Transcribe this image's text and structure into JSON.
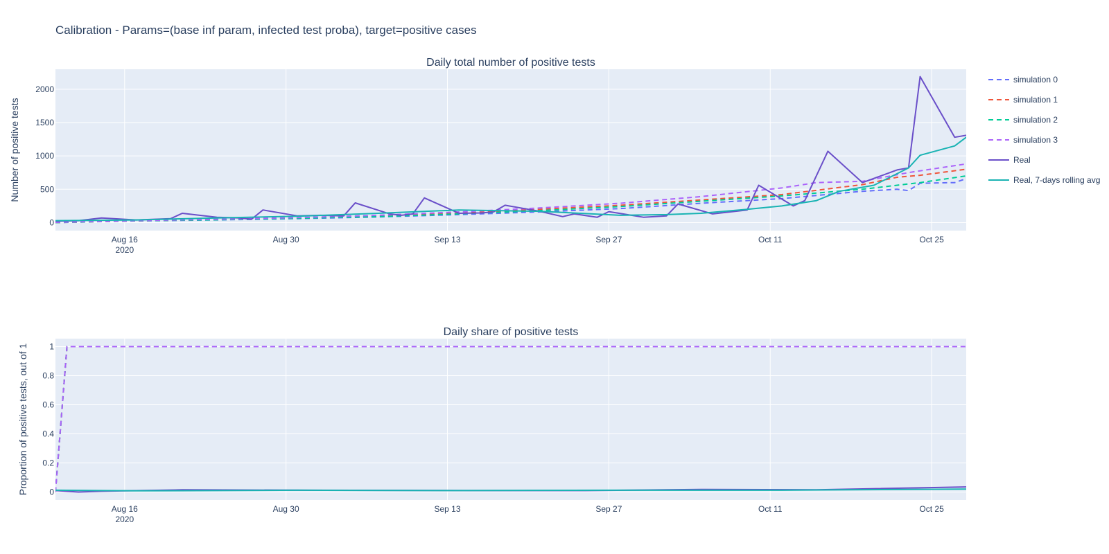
{
  "title": "Calibration - Params=(base inf param, infected test proba), target=positive cases",
  "chart_data": [
    {
      "type": "line",
      "title": "Daily total number of positive tests",
      "xlabel": "",
      "ylabel": "Number of positive tests",
      "x_range": [
        "2020-08-10",
        "2020-10-28"
      ],
      "x_ticks": [
        {
          "date": "2020-08-16",
          "label": "Aug 16",
          "sub": "2020"
        },
        {
          "date": "2020-08-30",
          "label": "Aug 30",
          "sub": ""
        },
        {
          "date": "2020-09-13",
          "label": "Sep 13",
          "sub": ""
        },
        {
          "date": "2020-09-27",
          "label": "Sep 27",
          "sub": ""
        },
        {
          "date": "2020-10-11",
          "label": "Oct 11",
          "sub": ""
        },
        {
          "date": "2020-10-25",
          "label": "Oct 25",
          "sub": ""
        }
      ],
      "ylim": [
        -120,
        2300
      ],
      "y_ticks": [
        {
          "value": 0,
          "label": "0"
        },
        {
          "value": 500,
          "label": "500"
        },
        {
          "value": 1000,
          "label": "1000"
        },
        {
          "value": 1500,
          "label": "1500"
        },
        {
          "value": 2000,
          "label": "2000"
        }
      ],
      "grid": true,
      "legend_position": "right",
      "series": [
        {
          "name": "simulation 0",
          "color": "#636efa",
          "dash": true,
          "points": [
            [
              "2020-08-10",
              0
            ],
            [
              "2020-08-17",
              25
            ],
            [
              "2020-08-24",
              40
            ],
            [
              "2020-08-31",
              60
            ],
            [
              "2020-09-07",
              85
            ],
            [
              "2020-09-14",
              120
            ],
            [
              "2020-09-21",
              160
            ],
            [
              "2020-09-28",
              210
            ],
            [
              "2020-10-05",
              290
            ],
            [
              "2020-10-12",
              360
            ],
            [
              "2020-10-19",
              470
            ],
            [
              "2020-10-22",
              500
            ],
            [
              "2020-10-23",
              480
            ],
            [
              "2020-10-24",
              590
            ],
            [
              "2020-10-27",
              600
            ],
            [
              "2020-10-28",
              660
            ]
          ]
        },
        {
          "name": "simulation 1",
          "color": "#ef553b",
          "dash": true,
          "points": [
            [
              "2020-08-10",
              0
            ],
            [
              "2020-08-17",
              28
            ],
            [
              "2020-08-24",
              45
            ],
            [
              "2020-08-31",
              70
            ],
            [
              "2020-09-07",
              100
            ],
            [
              "2020-09-14",
              140
            ],
            [
              "2020-09-21",
              200
            ],
            [
              "2020-09-28",
              260
            ],
            [
              "2020-10-05",
              340
            ],
            [
              "2020-10-12",
              420
            ],
            [
              "2020-10-19",
              570
            ],
            [
              "2020-10-22",
              680
            ],
            [
              "2020-10-24",
              710
            ],
            [
              "2020-10-28",
              800
            ]
          ]
        },
        {
          "name": "simulation 2",
          "color": "#00cc96",
          "dash": true,
          "points": [
            [
              "2020-08-10",
              0
            ],
            [
              "2020-08-17",
              27
            ],
            [
              "2020-08-24",
              42
            ],
            [
              "2020-08-31",
              65
            ],
            [
              "2020-09-07",
              90
            ],
            [
              "2020-09-14",
              130
            ],
            [
              "2020-09-21",
              180
            ],
            [
              "2020-09-28",
              240
            ],
            [
              "2020-10-05",
              320
            ],
            [
              "2020-10-12",
              400
            ],
            [
              "2020-10-19",
              500
            ],
            [
              "2020-10-24",
              600
            ],
            [
              "2020-10-28",
              700
            ]
          ]
        },
        {
          "name": "simulation 3",
          "color": "#ab63fa",
          "dash": true,
          "points": [
            [
              "2020-08-10",
              5
            ],
            [
              "2020-08-17",
              30
            ],
            [
              "2020-08-24",
              50
            ],
            [
              "2020-08-31",
              75
            ],
            [
              "2020-09-07",
              110
            ],
            [
              "2020-09-14",
              160
            ],
            [
              "2020-09-21",
              220
            ],
            [
              "2020-09-28",
              290
            ],
            [
              "2020-10-05",
              390
            ],
            [
              "2020-10-12",
              520
            ],
            [
              "2020-10-15",
              600
            ],
            [
              "2020-10-19",
              620
            ],
            [
              "2020-10-23",
              750
            ],
            [
              "2020-10-28",
              880
            ]
          ]
        },
        {
          "name": "Real",
          "color": "#6a4fc9",
          "dash": false,
          "points": [
            [
              "2020-08-10",
              20
            ],
            [
              "2020-08-12",
              30
            ],
            [
              "2020-08-14",
              70
            ],
            [
              "2020-08-17",
              40
            ],
            [
              "2020-08-20",
              60
            ],
            [
              "2020-08-21",
              140
            ],
            [
              "2020-08-24",
              80
            ],
            [
              "2020-08-26",
              70
            ],
            [
              "2020-08-27",
              50
            ],
            [
              "2020-08-28",
              190
            ],
            [
              "2020-08-31",
              100
            ],
            [
              "2020-09-02",
              110
            ],
            [
              "2020-09-04",
              100
            ],
            [
              "2020-09-05",
              295
            ],
            [
              "2020-09-08",
              130
            ],
            [
              "2020-09-09",
              110
            ],
            [
              "2020-09-10",
              130
            ],
            [
              "2020-09-11",
              370
            ],
            [
              "2020-09-14",
              140
            ],
            [
              "2020-09-16",
              145
            ],
            [
              "2020-09-17",
              160
            ],
            [
              "2020-09-18",
              260
            ],
            [
              "2020-09-21",
              170
            ],
            [
              "2020-09-23",
              90
            ],
            [
              "2020-09-24",
              130
            ],
            [
              "2020-09-26",
              80
            ],
            [
              "2020-09-27",
              165
            ],
            [
              "2020-09-30",
              80
            ],
            [
              "2020-10-02",
              100
            ],
            [
              "2020-10-03",
              280
            ],
            [
              "2020-10-06",
              130
            ],
            [
              "2020-10-09",
              190
            ],
            [
              "2020-10-10",
              560
            ],
            [
              "2020-10-13",
              250
            ],
            [
              "2020-10-14",
              330
            ],
            [
              "2020-10-16",
              1070
            ],
            [
              "2020-10-19",
              600
            ],
            [
              "2020-10-22",
              790
            ],
            [
              "2020-10-23",
              820
            ],
            [
              "2020-10-24",
              2190
            ],
            [
              "2020-10-27",
              1280
            ],
            [
              "2020-10-28",
              1310
            ]
          ]
        },
        {
          "name": "Real, 7-days rolling avg",
          "color": "#19b3b3",
          "dash": false,
          "points": [
            [
              "2020-08-10",
              30
            ],
            [
              "2020-08-17",
              40
            ],
            [
              "2020-08-24",
              70
            ],
            [
              "2020-08-31",
              95
            ],
            [
              "2020-09-07",
              140
            ],
            [
              "2020-09-14",
              190
            ],
            [
              "2020-09-21",
              170
            ],
            [
              "2020-09-28",
              110
            ],
            [
              "2020-10-02",
              120
            ],
            [
              "2020-10-05",
              140
            ],
            [
              "2020-10-09",
              200
            ],
            [
              "2020-10-12",
              250
            ],
            [
              "2020-10-15",
              330
            ],
            [
              "2020-10-17",
              470
            ],
            [
              "2020-10-20",
              560
            ],
            [
              "2020-10-23",
              820
            ],
            [
              "2020-10-24",
              1010
            ],
            [
              "2020-10-27",
              1150
            ],
            [
              "2020-10-28",
              1280
            ]
          ]
        }
      ]
    },
    {
      "type": "line",
      "title": "Daily share of positive tests",
      "xlabel": "",
      "ylabel": "Proportion of positive tests, out of 1",
      "x_range": [
        "2020-08-10",
        "2020-10-28"
      ],
      "x_ticks": [
        {
          "date": "2020-08-16",
          "label": "Aug 16",
          "sub": "2020"
        },
        {
          "date": "2020-08-30",
          "label": "Aug 30",
          "sub": ""
        },
        {
          "date": "2020-09-13",
          "label": "Sep 13",
          "sub": ""
        },
        {
          "date": "2020-09-27",
          "label": "Sep 27",
          "sub": ""
        },
        {
          "date": "2020-10-11",
          "label": "Oct 11",
          "sub": ""
        },
        {
          "date": "2020-10-25",
          "label": "Oct 25",
          "sub": ""
        }
      ],
      "ylim": [
        -0.055,
        1.055
      ],
      "y_ticks": [
        {
          "value": 0,
          "label": "0"
        },
        {
          "value": 0.2,
          "label": "0.2"
        },
        {
          "value": 0.4,
          "label": "0.4"
        },
        {
          "value": 0.6,
          "label": "0.6"
        },
        {
          "value": 0.8,
          "label": "0.8"
        },
        {
          "value": 1,
          "label": "1"
        }
      ],
      "grid": true,
      "series": [
        {
          "color": "#636efa",
          "dash": true,
          "points": [
            [
              "2020-08-10",
              0
            ],
            [
              "2020-08-11",
              1
            ],
            [
              "2020-10-28",
              1
            ]
          ]
        },
        {
          "color": "#ef553b",
          "dash": true,
          "points": [
            [
              "2020-08-10",
              0
            ],
            [
              "2020-08-11",
              1
            ],
            [
              "2020-10-28",
              1
            ]
          ]
        },
        {
          "color": "#00cc96",
          "dash": true,
          "points": [
            [
              "2020-08-10",
              0
            ],
            [
              "2020-08-11",
              1
            ],
            [
              "2020-10-28",
              1
            ]
          ]
        },
        {
          "color": "#ab63fa",
          "dash": true,
          "points": [
            [
              "2020-08-10",
              0
            ],
            [
              "2020-08-11",
              1
            ],
            [
              "2020-10-28",
              1
            ]
          ]
        },
        {
          "color": "#6a4fc9",
          "dash": false,
          "points": [
            [
              "2020-08-10",
              0.01
            ],
            [
              "2020-08-12",
              0.0
            ],
            [
              "2020-08-14",
              0.005
            ],
            [
              "2020-08-21",
              0.015
            ],
            [
              "2020-09-01",
              0.012
            ],
            [
              "2020-09-15",
              0.01
            ],
            [
              "2020-09-25",
              0.01
            ],
            [
              "2020-10-05",
              0.018
            ],
            [
              "2020-10-15",
              0.015
            ],
            [
              "2020-10-28",
              0.035
            ]
          ]
        },
        {
          "color": "#19b3b3",
          "dash": false,
          "points": [
            [
              "2020-08-10",
              0.012
            ],
            [
              "2020-08-17",
              0.008
            ],
            [
              "2020-08-31",
              0.012
            ],
            [
              "2020-09-14",
              0.01
            ],
            [
              "2020-09-28",
              0.012
            ],
            [
              "2020-10-12",
              0.012
            ],
            [
              "2020-10-28",
              0.02
            ]
          ]
        }
      ]
    }
  ]
}
